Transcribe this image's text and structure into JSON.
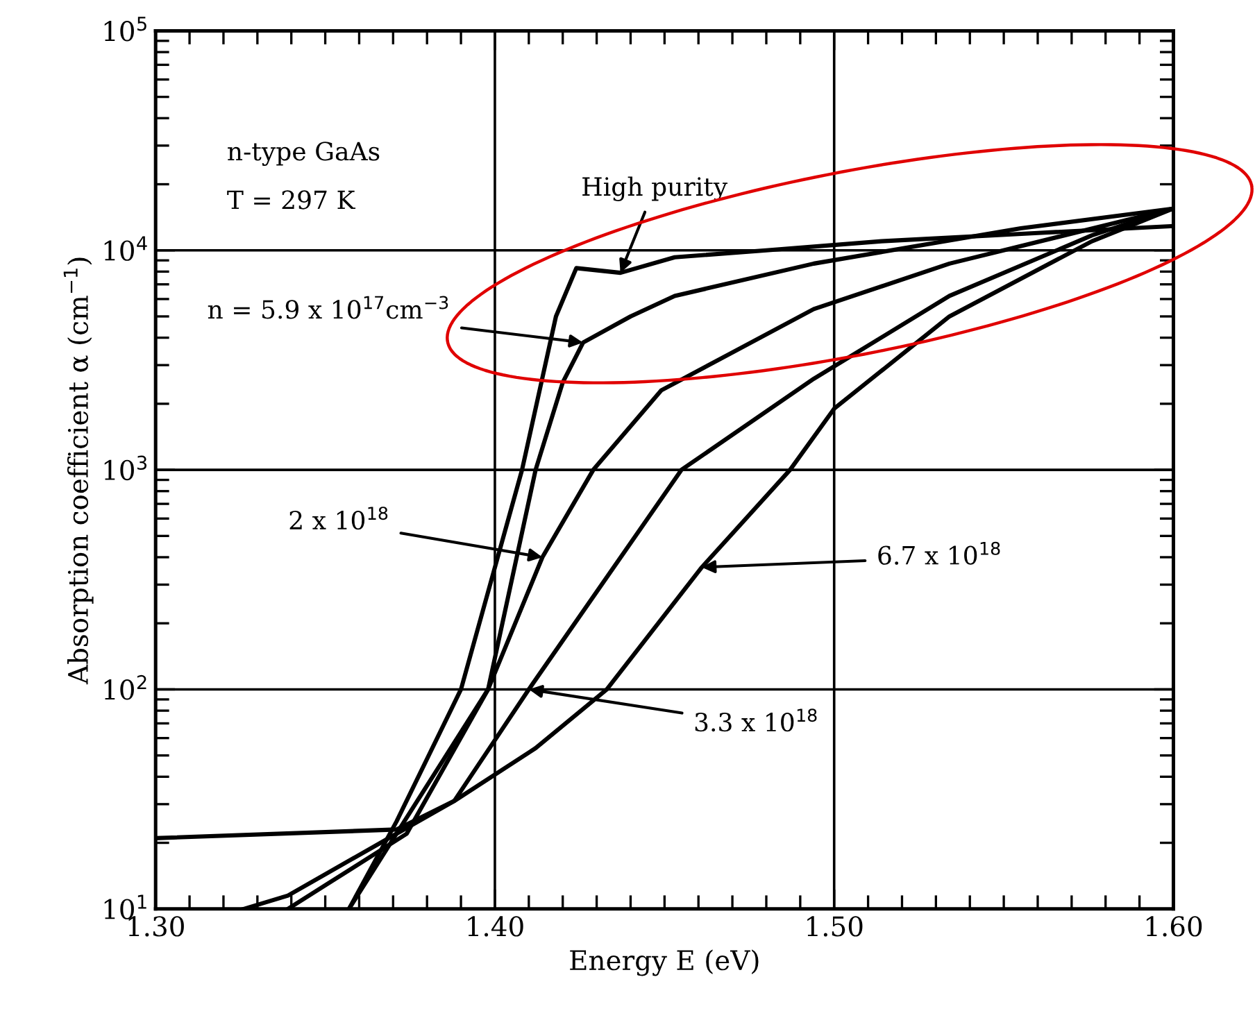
{
  "chart_data": {
    "type": "line",
    "xlabel": "Energy E (eV)",
    "ylabel": "Absorption coefficient α (cm$^{−1}$)",
    "log": "y",
    "grid": true,
    "marker": "none",
    "line_style": "solid",
    "xlim": [
      1.3,
      1.6
    ],
    "xticks": [
      {
        "value": 1.3,
        "label": "1.30"
      },
      {
        "value": 1.4,
        "label": "1.40"
      },
      {
        "value": 1.5,
        "label": "1.50"
      },
      {
        "value": 1.6,
        "label": "1.60"
      }
    ],
    "ylim": [
      10,
      100000
    ],
    "yticks": [
      {
        "value": 10,
        "label": "10$^{1}$"
      },
      {
        "value": 100,
        "label": "10$^{2}$"
      },
      {
        "value": 1000,
        "label": "10$^{3}$"
      },
      {
        "value": 10000,
        "label": "10$^{4}$"
      },
      {
        "value": 100000,
        "label": "10$^{5}$"
      }
    ],
    "annotations": [
      "n-type GaAs",
      "T = 297 K",
      {
        "text": "High purity",
        "x": 1.437,
        "y": 7900
      },
      {
        "text": "n = 5.9 x 10$^{17}$cm$^{−3}$",
        "x": 1.426,
        "y": 3800
      },
      {
        "text": "2 x 10$^{18}$",
        "x": 1.414,
        "y": 400
      },
      {
        "text": "3.3 x 10$^{18}$",
        "x": 1.41,
        "y": 100
      },
      {
        "text": "6.7 x 10$^{18}$",
        "x": 1.461,
        "y": 360
      }
    ],
    "series": [
      {
        "color": "#000000",
        "x": [
          1.357,
          1.371,
          1.39,
          1.408,
          1.418,
          1.424,
          1.437,
          1.453,
          1.48,
          1.514,
          1.56,
          1.6
        ],
        "values": [
          10,
          25,
          100,
          1000,
          5000,
          8300,
          7900,
          9300,
          10000,
          11000,
          12000,
          12900
        ]
      },
      {
        "color": "#000000",
        "x": [
          1.357,
          1.371,
          1.398,
          1.412,
          1.42,
          1.426,
          1.44,
          1.453,
          1.494,
          1.555,
          1.6
        ],
        "values": [
          10,
          22,
          100,
          1000,
          2500,
          3800,
          5000,
          6200,
          8700,
          12600,
          15500
        ]
      },
      {
        "color": "#000000",
        "x": [
          1.339,
          1.374,
          1.398,
          1.414,
          1.429,
          1.449,
          1.494,
          1.534,
          1.6
        ],
        "values": [
          10,
          22,
          100,
          400,
          1000,
          2300,
          5400,
          8700,
          15500
        ]
      },
      {
        "color": "#000000",
        "x": [
          1.326,
          1.339,
          1.371,
          1.388,
          1.41,
          1.455,
          1.494,
          1.534,
          1.576,
          1.6
        ],
        "values": [
          10,
          11.5,
          22,
          31,
          100,
          1000,
          2600,
          6200,
          11700,
          15500
        ]
      },
      {
        "color": "#000000",
        "x": [
          1.3,
          1.371,
          1.388,
          1.412,
          1.433,
          1.461,
          1.487,
          1.5,
          1.534,
          1.576,
          1.6
        ],
        "values": [
          21,
          23,
          31,
          54,
          100,
          360,
          1000,
          1900,
          5000,
          11000,
          15500
        ]
      }
    ]
  }
}
